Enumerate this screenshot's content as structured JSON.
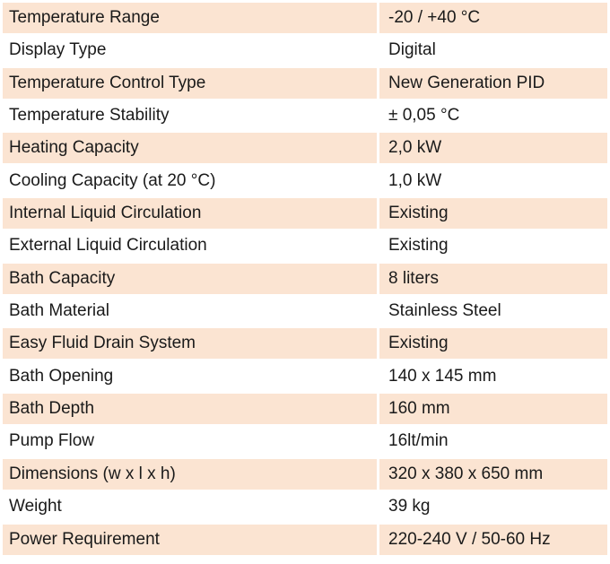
{
  "specs": [
    {
      "name": "Temperature Range",
      "value": "-20 / +40 °C"
    },
    {
      "name": "Display Type",
      "value": "Digital"
    },
    {
      "name": "Temperature Control Type",
      "value": "New Generation PID"
    },
    {
      "name": "Temperature Stability",
      "value": "± 0,05 °C"
    },
    {
      "name": "Heating Capacity",
      "value": "2,0 kW"
    },
    {
      "name": "Cooling Capacity (at 20 °C)",
      "value": "1,0 kW"
    },
    {
      "name": "Internal Liquid Circulation",
      "value": "Existing"
    },
    {
      "name": "External Liquid Circulation",
      "value": "Existing"
    },
    {
      "name": "Bath Capacity",
      "value": "8 liters"
    },
    {
      "name": "Bath Material",
      "value": "Stainless Steel"
    },
    {
      "name": "Easy Fluid Drain System",
      "value": "Existing"
    },
    {
      "name": "Bath Opening",
      "value": "140 x 145 mm"
    },
    {
      "name": "Bath Depth",
      "value": "160 mm"
    },
    {
      "name": "Pump Flow",
      "value": "16lt/min"
    },
    {
      "name": "Dimensions (w x l x h)",
      "value": "320 x 380 x 650 mm"
    },
    {
      "name": "Weight",
      "value": "39 kg"
    },
    {
      "name": "Power Requirement",
      "value": "220-240 V / 50-60 Hz"
    }
  ],
  "colors": {
    "stripe": "#fbe4d2",
    "text": "#1a1a1a"
  }
}
